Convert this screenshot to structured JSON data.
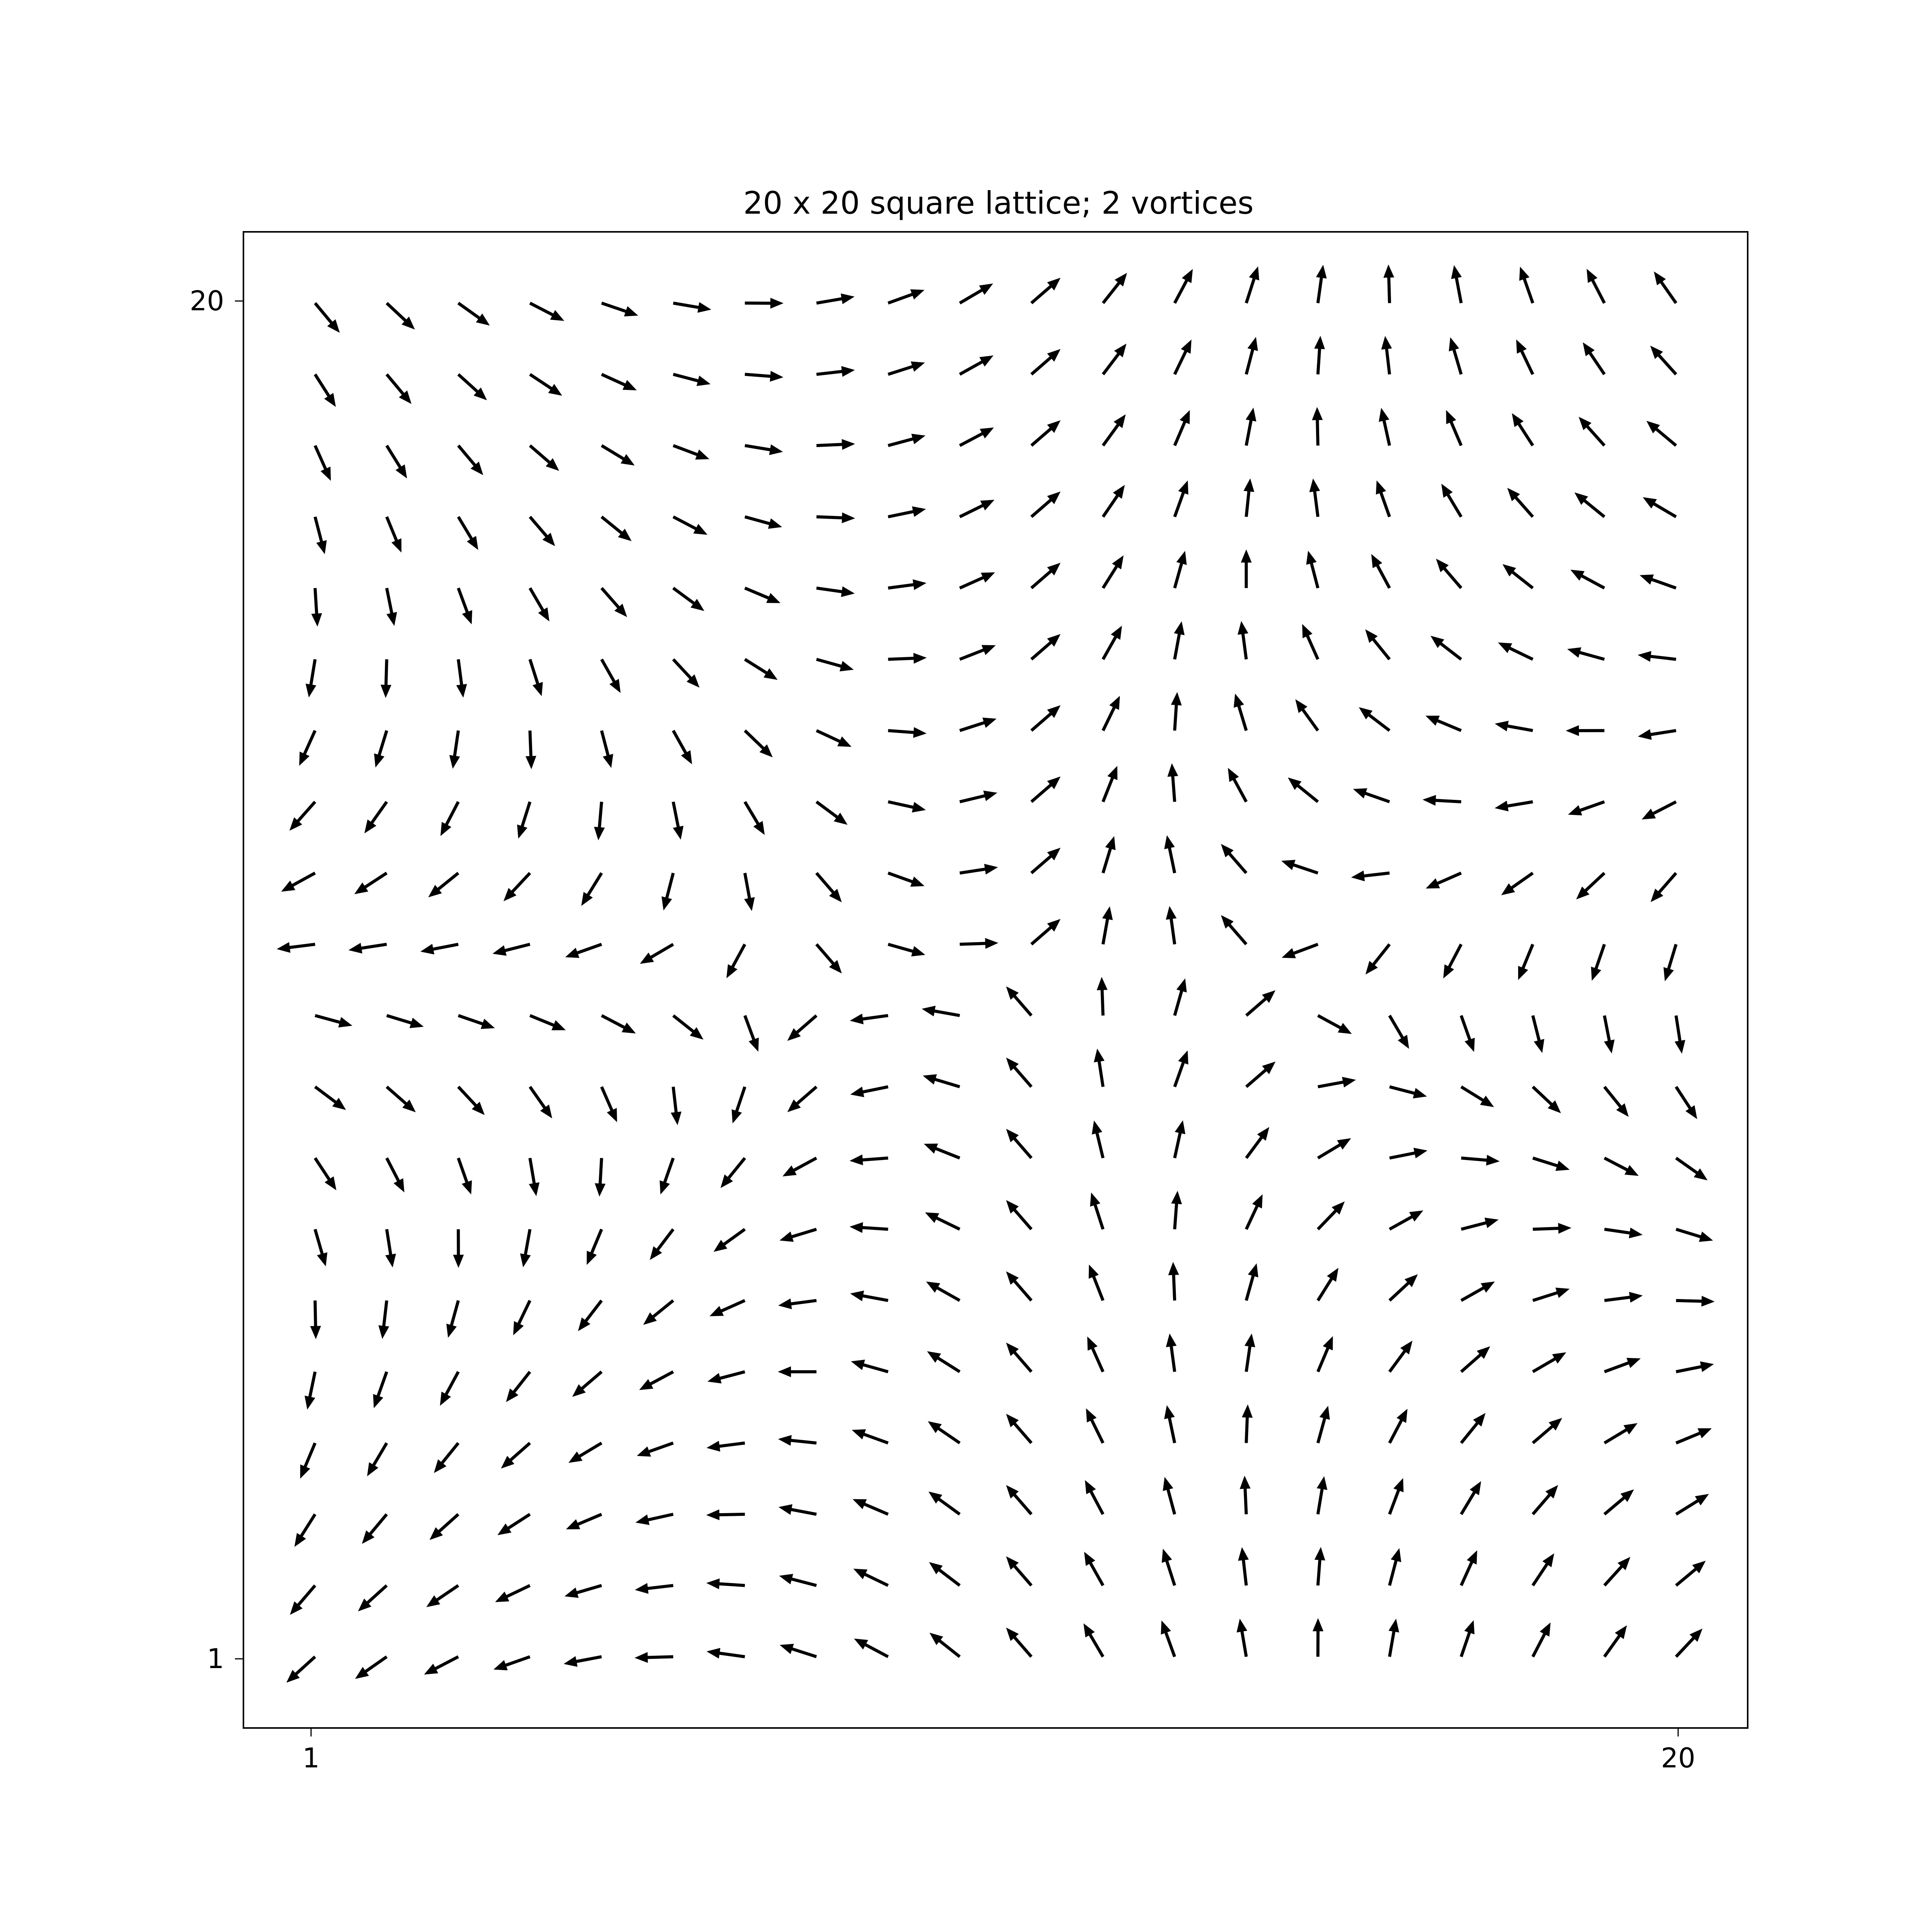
{
  "chart_data": {
    "type": "quiver",
    "title": "20 x 20 square lattice; 2 vortices",
    "xlabel": "",
    "ylabel": "",
    "lattice_size": [
      20,
      20
    ],
    "xlim": [
      0.0,
      21.0
    ],
    "ylim": [
      0.0,
      21.0
    ],
    "xticks": [
      1,
      20
    ],
    "yticks": [
      1,
      20
    ],
    "xtick_labels": [
      "1",
      "20"
    ],
    "ytick_labels": [
      "1",
      "20"
    ],
    "grid": false,
    "legend": null,
    "arrow_color": "#000000",
    "field_model": "angle(x,y) = phase of ((x - 7.5) - 1.5i(y - 10.5)) + phase of ((x - 14.5) - 1.5i(y - 10.5)) + 1.5 - 0.5 * phase(x - 11 + i(y - 10.5)) - pi",
    "vortex_centers": [
      [
        7.5,
        10.5
      ],
      [
        14.5,
        10.5
      ]
    ]
  },
  "colors": {
    "background": "#ffffff",
    "axes": "#000000",
    "arrows": "#000000"
  }
}
